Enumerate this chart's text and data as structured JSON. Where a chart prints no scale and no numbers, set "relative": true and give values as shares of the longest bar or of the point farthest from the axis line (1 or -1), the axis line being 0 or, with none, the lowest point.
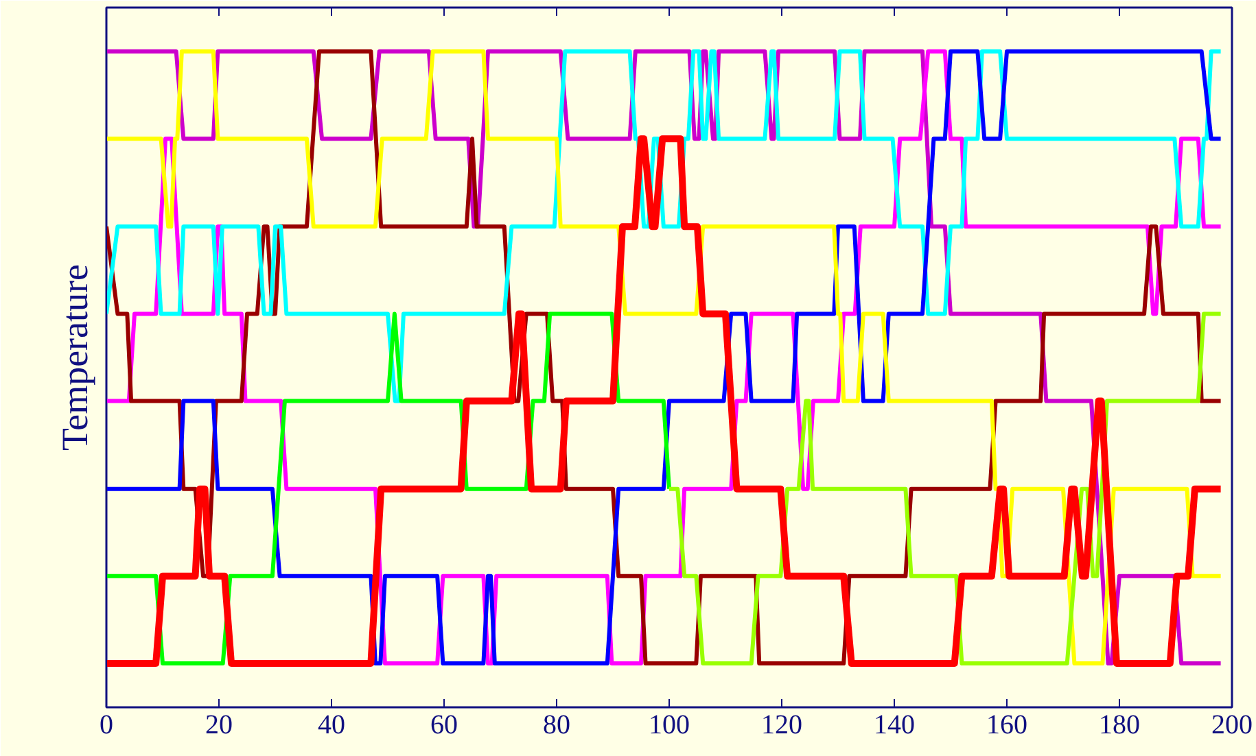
{
  "chart_data": {
    "type": "line",
    "ylabel": "Temperature",
    "relative": true,
    "xlim": [
      0,
      200
    ],
    "xticks": [
      0,
      20,
      40,
      60,
      80,
      100,
      120,
      140,
      160,
      180,
      200
    ],
    "grid": false,
    "tick_labels": "x",
    "series": [
      {
        "color": "#cc00cc",
        "x": [
          0,
          12.4,
          13.7,
          19,
          19.8,
          36.8,
          38.3,
          47,
          48.5,
          57.3,
          58.5,
          64.3,
          65.3,
          66,
          67.8,
          80.7,
          82,
          93,
          94,
          103.6,
          104.5,
          105.3,
          106,
          106.5,
          107.8,
          108.2,
          108.8,
          117,
          118.2,
          118.6,
          119.4,
          129.4,
          130.3,
          133.9,
          134.7,
          145,
          146.6,
          149,
          150,
          166,
          167,
          175,
          178,
          178.6,
          180,
          189.8,
          191,
          198
        ],
        "values": [
          1,
          1,
          0.867,
          0.867,
          1,
          1,
          0.867,
          0.867,
          1,
          1,
          0.867,
          0.867,
          0.733,
          0.733,
          1,
          1,
          0.867,
          0.867,
          1,
          1,
          0.867,
          0.867,
          1,
          1,
          0.867,
          0.867,
          1,
          1,
          0.867,
          0.867,
          1,
          1,
          0.867,
          0.867,
          1,
          1,
          0.733,
          0.733,
          0.6,
          0.6,
          0.467,
          0.467,
          0.067,
          0.067,
          0.2,
          0.2,
          0.067,
          0.067
        ]
      },
      {
        "color": "#ff00ff",
        "x": [
          0,
          4,
          5,
          8.8,
          10.5,
          11.6,
          13.4,
          19,
          19.8,
          20.4,
          21,
          24,
          24.7,
          31,
          32,
          47.8,
          49.5,
          58.8,
          59.8,
          67,
          67.8,
          68.5,
          69.3,
          89,
          89.8,
          95,
          95.8,
          102,
          102.7,
          111,
          112,
          113.6,
          114.6,
          122,
          123.8,
          124.6,
          125.6,
          130,
          131,
          133,
          134,
          140,
          141,
          144.6,
          146,
          149,
          150,
          152,
          152.7,
          185,
          186,
          186.5,
          187.5,
          190,
          191,
          194,
          195,
          198
        ],
        "values": [
          0.467,
          0.467,
          0.6,
          0.6,
          0.867,
          0.867,
          0.6,
          0.6,
          0.733,
          0.733,
          0.6,
          0.6,
          0.467,
          0.467,
          0.333,
          0.333,
          0.067,
          0.067,
          0.2,
          0.2,
          0.067,
          0.067,
          0.2,
          0.2,
          0.067,
          0.067,
          0.2,
          0.2,
          0.333,
          0.333,
          0.467,
          0.467,
          0.6,
          0.6,
          0.333,
          0.333,
          0.467,
          0.467,
          0.6,
          0.6,
          0.733,
          0.733,
          0.867,
          0.867,
          1,
          1,
          0.867,
          0.867,
          0.733,
          0.733,
          0.6,
          0.6,
          0.733,
          0.733,
          0.867,
          0.867,
          0.733,
          0.733
        ]
      },
      {
        "color": "#990000",
        "x": [
          0,
          2,
          3.7,
          4.4,
          13,
          13.7,
          15.8,
          17.2,
          18,
          19.5,
          24,
          25,
          26.8,
          28,
          28.6,
          29.5,
          30,
          30.8,
          35.6,
          37.8,
          47,
          48.8,
          64,
          65,
          65.8,
          70.7,
          72.5,
          73.2,
          74.6,
          78.3,
          79.3,
          81,
          81.7,
          90,
          91,
          95,
          95.8,
          104.8,
          105.6,
          115.4,
          116,
          131,
          132,
          142,
          143,
          157,
          158,
          166,
          166.6,
          184.4,
          185.6,
          186.5,
          187.8,
          194,
          194.6,
          198
        ],
        "values": [
          0.733,
          0.6,
          0.6,
          0.467,
          0.467,
          0.333,
          0.333,
          0.2,
          0.2,
          0.467,
          0.467,
          0.6,
          0.6,
          0.733,
          0.733,
          0.6,
          0.6,
          0.733,
          0.733,
          1,
          1,
          0.733,
          0.733,
          0.867,
          0.733,
          0.733,
          0.467,
          0.467,
          0.6,
          0.6,
          0.467,
          0.467,
          0.333,
          0.333,
          0.2,
          0.2,
          0.067,
          0.067,
          0.2,
          0.2,
          0.067,
          0.067,
          0.2,
          0.2,
          0.333,
          0.333,
          0.467,
          0.467,
          0.6,
          0.6,
          0.733,
          0.733,
          0.6,
          0.6,
          0.467,
          0.467
        ]
      },
      {
        "color": "#00ffff",
        "x": [
          0,
          2,
          8.8,
          9.7,
          13,
          13.7,
          19,
          19.8,
          20.6,
          27,
          28,
          29.2,
          30,
          31,
          32,
          50,
          51.3,
          52,
          52.8,
          70.7,
          72,
          79.6,
          81.5,
          93,
          94,
          94.5,
          95.5,
          96.3,
          97.3,
          98,
          99,
          101.7,
          102.7,
          103.4,
          104.3,
          105.3,
          106,
          106.5,
          107.5,
          108,
          108.8,
          117,
          118.2,
          118.6,
          119.4,
          129.4,
          130.3,
          133.9,
          134.7,
          139.7,
          141,
          145,
          146,
          149,
          150,
          152,
          152.7,
          154.8,
          155.6,
          158.8,
          160,
          189.8,
          191,
          194,
          195,
          195.5,
          196.3,
          198
        ],
        "values": [
          0.6,
          0.733,
          0.733,
          0.6,
          0.6,
          0.733,
          0.733,
          0.6,
          0.733,
          0.733,
          0.6,
          0.6,
          0.733,
          0.733,
          0.6,
          0.6,
          0.467,
          0.467,
          0.6,
          0.6,
          0.733,
          0.733,
          1,
          1,
          0.867,
          0.867,
          0.733,
          0.733,
          0.867,
          0.867,
          0.733,
          0.733,
          0.867,
          0.867,
          1,
          1,
          0.867,
          0.867,
          1,
          1,
          0.867,
          0.867,
          1,
          1,
          0.867,
          0.867,
          1,
          1,
          0.867,
          0.867,
          0.733,
          0.733,
          0.6,
          0.6,
          0.733,
          0.733,
          0.867,
          0.867,
          1,
          1,
          0.867,
          0.867,
          0.733,
          0.733,
          0.867,
          0.867,
          1,
          1
        ]
      },
      {
        "color": "#0000ff",
        "x": [
          0,
          13,
          13.7,
          19,
          19.8,
          29.5,
          30.8,
          47,
          47.8,
          48.7,
          49.5,
          58.8,
          59.8,
          67,
          67.8,
          68.3,
          69,
          89,
          91,
          99,
          100,
          109.7,
          111,
          113.6,
          114.6,
          122,
          122.7,
          129.3,
          130,
          132.9,
          134.5,
          138,
          139,
          145,
          147,
          149,
          150,
          154.8,
          156,
          158.8,
          160,
          194.6,
          196.3,
          198
        ],
        "values": [
          0.333,
          0.333,
          0.467,
          0.467,
          0.333,
          0.333,
          0.2,
          0.2,
          0.067,
          0.067,
          0.2,
          0.2,
          0.067,
          0.067,
          0.2,
          0.2,
          0.067,
          0.067,
          0.333,
          0.333,
          0.467,
          0.467,
          0.6,
          0.6,
          0.467,
          0.467,
          0.6,
          0.6,
          0.733,
          0.733,
          0.467,
          0.467,
          0.6,
          0.6,
          0.867,
          0.867,
          1,
          1,
          0.867,
          0.867,
          1,
          1,
          0.867,
          0.867
        ]
      },
      {
        "color": "#ffff00",
        "x": [
          0,
          9.7,
          11,
          11.5,
          12.2,
          12.6,
          13.4,
          19,
          19.8,
          35.6,
          36.8,
          47.8,
          49,
          56.8,
          58,
          67,
          67.8,
          80,
          80.7,
          91,
          92.2,
          104.8,
          106,
          129.3,
          130,
          130.4,
          131,
          133.5,
          134.5,
          138,
          139,
          157.3,
          158,
          158.5,
          159.2,
          160,
          161,
          170,
          172,
          177,
          179,
          192,
          193,
          198
        ],
        "values": [
          0.867,
          0.867,
          0.733,
          0.733,
          0.867,
          0.867,
          1,
          1,
          0.867,
          0.867,
          0.733,
          0.733,
          0.867,
          0.867,
          1,
          1,
          0.867,
          0.867,
          0.733,
          0.733,
          0.6,
          0.6,
          0.733,
          0.733,
          0.6,
          0.6,
          0.467,
          0.467,
          0.6,
          0.6,
          0.467,
          0.467,
          0.333,
          0.333,
          0.2,
          0.2,
          0.333,
          0.333,
          0.067,
          0.067,
          0.333,
          0.333,
          0.2,
          0.2
        ]
      },
      {
        "color": "#00ff00",
        "x": [
          0,
          8.8,
          10,
          20.7,
          22,
          29.5,
          31.7,
          50,
          51.2,
          52.4,
          63,
          64,
          74.6,
          75.8,
          77.8,
          78.8,
          89.8,
          91,
          99,
          100
        ],
        "values": [
          0.2,
          0.2,
          0.067,
          0.067,
          0.2,
          0.2,
          0.467,
          0.467,
          0.6,
          0.467,
          0.467,
          0.333,
          0.333,
          0.467,
          0.467,
          0.6,
          0.6,
          0.467,
          0.467,
          0.333
        ]
      },
      {
        "color": "#99ff00",
        "x": [
          100,
          101.5,
          102.7,
          104.8,
          106,
          114.6,
          115.8,
          119.8,
          121,
          123,
          124.3,
          124.8,
          125.5,
          142,
          143,
          151,
          152,
          170.7,
          172,
          173.3,
          174.3,
          175.3,
          176,
          177.8,
          194,
          195,
          198
        ],
        "values": [
          0.333,
          0.333,
          0.2,
          0.2,
          0.067,
          0.067,
          0.2,
          0.2,
          0.333,
          0.333,
          0.467,
          0.467,
          0.333,
          0.333,
          0.2,
          0.2,
          0.067,
          0.067,
          0.2,
          0.333,
          0.333,
          0.2,
          0.2,
          0.467,
          0.467,
          0.6,
          0.6
        ]
      },
      {
        "color": "#ff0000",
        "x": [
          0,
          8.8,
          10,
          15.8,
          16.6,
          17.5,
          18.3,
          21,
          22.2,
          47,
          48.8,
          63,
          64,
          72,
          73.3,
          73.8,
          75.5,
          80.7,
          81.7,
          90,
          91.7,
          93.9,
          95,
          95.5,
          97,
          97.5,
          98.8,
          102,
          102.7,
          105,
          106,
          110,
          112,
          119.8,
          121,
          131,
          132.4,
          150.7,
          152,
          157.3,
          158.8,
          159.4,
          160.4,
          170.2,
          171.5,
          172,
          173.4,
          174,
          176.3,
          176.8,
          179.5,
          189,
          190.2,
          192.2,
          193.4,
          198
        ],
        "values": [
          0.067,
          0.067,
          0.2,
          0.2,
          0.333,
          0.333,
          0.2,
          0.2,
          0.067,
          0.067,
          0.333,
          0.333,
          0.467,
          0.467,
          0.6,
          0.6,
          0.333,
          0.333,
          0.467,
          0.467,
          0.733,
          0.733,
          0.867,
          0.867,
          0.733,
          0.733,
          0.867,
          0.867,
          0.733,
          0.733,
          0.6,
          0.6,
          0.333,
          0.333,
          0.2,
          0.2,
          0.067,
          0.067,
          0.2,
          0.2,
          0.333,
          0.333,
          0.2,
          0.2,
          0.333,
          0.333,
          0.2,
          0.2,
          0.467,
          0.467,
          0.067,
          0.067,
          0.2,
          0.2,
          0.333,
          0.333
        ]
      }
    ]
  }
}
